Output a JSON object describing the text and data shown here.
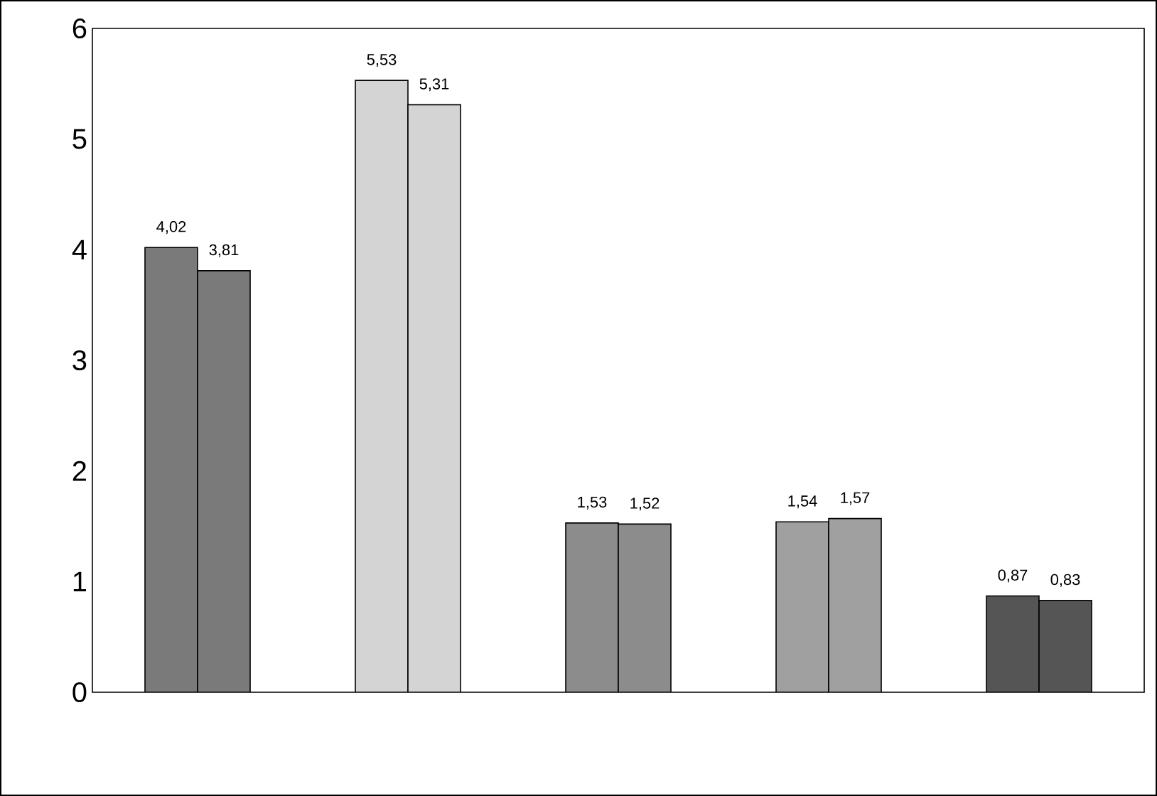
{
  "chart_data": {
    "type": "bar",
    "categories": [
      null,
      null,
      null,
      null,
      null
    ],
    "series": [
      {
        "colors": [
          "#7a7a7a",
          "#d4d4d4",
          "#8c8c8c",
          "#a0a0a0",
          "#555555"
        ],
        "values": [
          4.02,
          5.53,
          1.53,
          1.54,
          0.87
        ],
        "value_labels": [
          "4,02",
          "5,53",
          "1,53",
          "1,54",
          "0,87"
        ]
      },
      {
        "colors": [
          "#7a7a7a",
          "#d4d4d4",
          "#8c8c8c",
          "#a0a0a0",
          "#555555"
        ],
        "values": [
          3.81,
          5.31,
          1.52,
          1.57,
          0.83
        ],
        "value_labels": [
          "3,81",
          "5,31",
          "1,52",
          "1,57",
          "0,83"
        ]
      }
    ],
    "ylim": [
      0,
      6
    ],
    "yticks": [
      0,
      1,
      2,
      3,
      4,
      5,
      6
    ],
    "grid": false
  }
}
